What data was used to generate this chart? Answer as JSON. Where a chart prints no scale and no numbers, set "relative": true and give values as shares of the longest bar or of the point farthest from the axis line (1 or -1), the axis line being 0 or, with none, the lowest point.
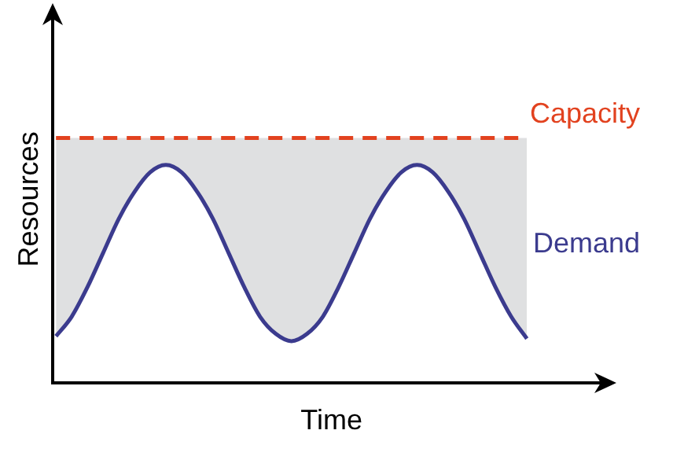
{
  "chart_data": {
    "type": "line",
    "relative": true,
    "xlabel": "Time",
    "ylabel": "Resources",
    "marker": "none",
    "grid": false,
    "legend": false,
    "tick_labels": false,
    "categories": [
      null,
      null,
      null,
      null,
      null,
      null,
      null,
      null,
      null,
      null,
      null,
      null,
      null,
      null,
      null,
      null,
      null,
      null,
      null,
      null,
      null,
      null,
      null,
      null,
      null,
      null,
      null,
      null,
      null,
      null,
      null
    ],
    "series": [
      {
        "name": "Demand",
        "color": "#3b3b8e",
        "values": [
          0.19,
          0.27,
          0.39,
          0.53,
          0.67,
          0.78,
          0.86,
          0.89,
          0.86,
          0.78,
          0.67,
          0.53,
          0.39,
          0.27,
          0.2,
          0.17,
          0.2,
          0.27,
          0.39,
          0.53,
          0.67,
          0.78,
          0.86,
          0.89,
          0.86,
          0.78,
          0.67,
          0.53,
          0.39,
          0.27,
          0.18
        ],
        "lower": [
          0.19,
          0.27,
          0.39,
          0.53,
          0.67,
          0.78,
          0.86,
          0.89,
          0.86,
          0.78,
          0.67,
          0.53,
          0.39,
          0.27,
          0.2,
          0.17,
          0.2,
          0.27,
          0.39,
          0.53,
          0.67,
          0.78,
          0.86,
          0.89,
          0.86,
          0.78,
          0.67,
          0.53,
          0.39,
          0.27,
          0.18
        ],
        "upper": [
          1,
          1,
          1,
          1,
          1,
          1,
          1,
          1,
          1,
          1,
          1,
          1,
          1,
          1,
          1,
          1,
          1,
          1,
          1,
          1,
          1,
          1,
          1,
          1,
          1,
          1,
          1,
          1,
          1,
          1,
          1
        ]
      },
      {
        "name": "Capacity",
        "color": "#e2421f",
        "line_style": "dashed",
        "values": [
          1,
          1,
          1,
          1,
          1,
          1,
          1,
          1,
          1,
          1,
          1,
          1,
          1,
          1,
          1,
          1,
          1,
          1,
          1,
          1,
          1,
          1,
          1,
          1,
          1,
          1,
          1,
          1,
          1,
          1,
          1
        ]
      }
    ]
  }
}
